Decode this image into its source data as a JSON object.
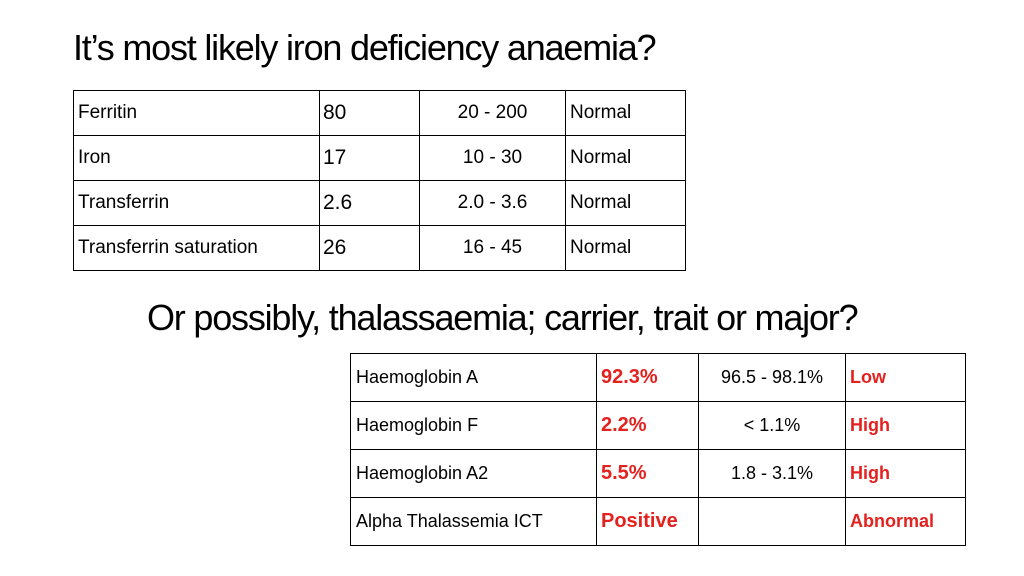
{
  "title": "It’s most likely iron deficiency anaemia?",
  "subtitle": "Or possibly, thalassaemia; carrier, trait or major?",
  "iron_table": [
    {
      "test": "Ferritin",
      "value": "80",
      "range": "20 - 200",
      "status": "Normal"
    },
    {
      "test": "Iron",
      "value": "17",
      "range": "10 - 30",
      "status": "Normal"
    },
    {
      "test": "Transferrin",
      "value": "2.6",
      "range": "2.0 - 3.6",
      "status": "Normal"
    },
    {
      "test": "Transferrin saturation",
      "value": "26",
      "range": "16 - 45",
      "status": "Normal"
    }
  ],
  "thal_table": [
    {
      "test": "Haemoglobin A",
      "value": "92.3%",
      "range": "96.5 - 98.1%",
      "status": "Low"
    },
    {
      "test": "Haemoglobin F",
      "value": "2.2%",
      "range": "< 1.1%",
      "status": "High"
    },
    {
      "test": "Haemoglobin A2",
      "value": "5.5%",
      "range": "1.8 - 3.1%",
      "status": "High"
    },
    {
      "test": "Alpha Thalassemia ICT",
      "value": "Positive",
      "range": "",
      "status": "Abnormal"
    }
  ],
  "colors": {
    "abnormal_text": "#e3211e",
    "border": "#000000",
    "background": "#ffffff"
  }
}
